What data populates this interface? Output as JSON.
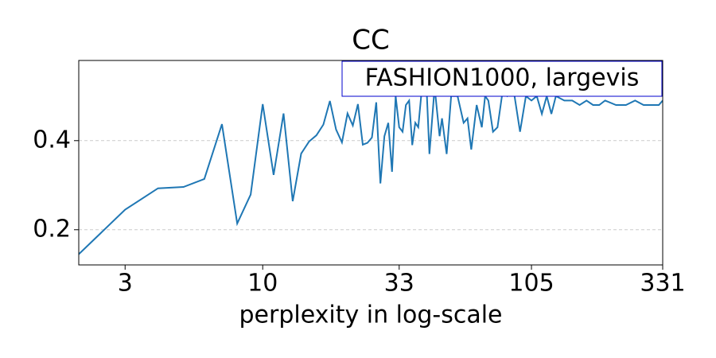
{
  "chart_data": {
    "type": "line",
    "title": "CC",
    "annotation": "FASHION1000, largevis",
    "xlabel": "perplexity in log-scale",
    "xscale": "log",
    "color": "#1f77b4",
    "grid": true,
    "x": [
      2,
      3,
      4,
      5,
      6,
      7,
      8,
      9,
      10,
      11,
      12,
      13,
      14,
      15,
      16,
      17,
      18,
      19,
      20,
      21,
      22,
      23,
      24,
      25,
      26,
      27,
      28,
      29,
      30,
      31,
      32,
      33,
      34,
      35,
      36,
      37,
      38,
      39,
      40,
      42,
      43,
      45,
      47,
      48,
      50,
      52,
      55,
      58,
      60,
      62,
      65,
      68,
      70,
      72,
      75,
      78,
      82,
      85,
      90,
      95,
      100,
      105,
      110,
      115,
      120,
      125,
      130,
      140,
      150,
      160,
      170,
      180,
      190,
      200,
      220,
      240,
      260,
      280,
      300,
      320,
      331
    ],
    "values": [
      0.145,
      0.245,
      0.293,
      0.296,
      0.314,
      0.437,
      0.214,
      0.279,
      0.482,
      0.323,
      0.461,
      0.264,
      0.371,
      0.398,
      0.412,
      0.436,
      0.489,
      0.425,
      0.396,
      0.461,
      0.434,
      0.482,
      0.391,
      0.395,
      0.407,
      0.486,
      0.304,
      0.41,
      0.44,
      0.33,
      0.5,
      0.43,
      0.42,
      0.48,
      0.49,
      0.39,
      0.44,
      0.43,
      0.5,
      0.51,
      0.37,
      0.52,
      0.41,
      0.45,
      0.37,
      0.5,
      0.5,
      0.44,
      0.45,
      0.38,
      0.48,
      0.43,
      0.5,
      0.49,
      0.42,
      0.43,
      0.52,
      0.5,
      0.51,
      0.42,
      0.5,
      0.49,
      0.5,
      0.46,
      0.5,
      0.46,
      0.5,
      0.49,
      0.49,
      0.48,
      0.49,
      0.48,
      0.48,
      0.49,
      0.48,
      0.48,
      0.49,
      0.48,
      0.48,
      0.48,
      0.49
    ],
    "xlim": [
      2,
      331
    ],
    "xticks": [
      3,
      10,
      33,
      105,
      331
    ],
    "ylim": [
      0.121,
      0.58
    ],
    "yticks": [
      0.2,
      0.4
    ]
  }
}
